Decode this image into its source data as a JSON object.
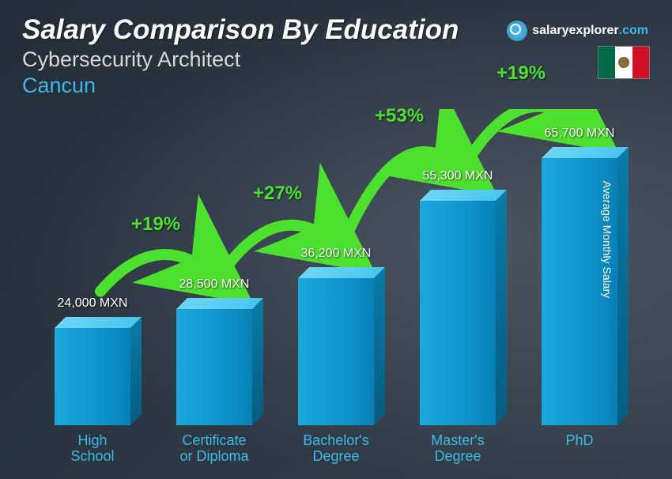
{
  "header": {
    "title": "Salary Comparison By Education",
    "subtitle": "Cybersecurity Architect",
    "location": "Cancun"
  },
  "brand": {
    "name": "salaryexplorer",
    "tld": ".com"
  },
  "flag": {
    "country": "Mexico",
    "colors": [
      "#006847",
      "#ffffff",
      "#ce1126"
    ]
  },
  "yaxis": "Average Monthly Salary",
  "chart": {
    "type": "bar",
    "currency": "MXN",
    "max_value": 70000,
    "bar_color_front": "#1ba8dc",
    "bar_color_top": "#6dd5f5",
    "bar_color_side": "#0a7aa8",
    "label_color": "#3bb8e8",
    "value_color": "#ffffff",
    "pct_color": "#4de02e",
    "background": "photo-office-dark",
    "bars": [
      {
        "label": "High\nSchool",
        "value": 24000,
        "value_label": "24,000 MXN"
      },
      {
        "label": "Certificate\nor Diploma",
        "value": 28500,
        "value_label": "28,500 MXN"
      },
      {
        "label": "Bachelor's\nDegree",
        "value": 36200,
        "value_label": "36,200 MXN"
      },
      {
        "label": "Master's\nDegree",
        "value": 55300,
        "value_label": "55,300 MXN"
      },
      {
        "label": "PhD",
        "value": 65700,
        "value_label": "65,700 MXN"
      }
    ],
    "increases": [
      {
        "from": 0,
        "to": 1,
        "pct": "+19%"
      },
      {
        "from": 1,
        "to": 2,
        "pct": "+27%"
      },
      {
        "from": 2,
        "to": 3,
        "pct": "+53%"
      },
      {
        "from": 3,
        "to": 4,
        "pct": "+19%"
      }
    ]
  }
}
